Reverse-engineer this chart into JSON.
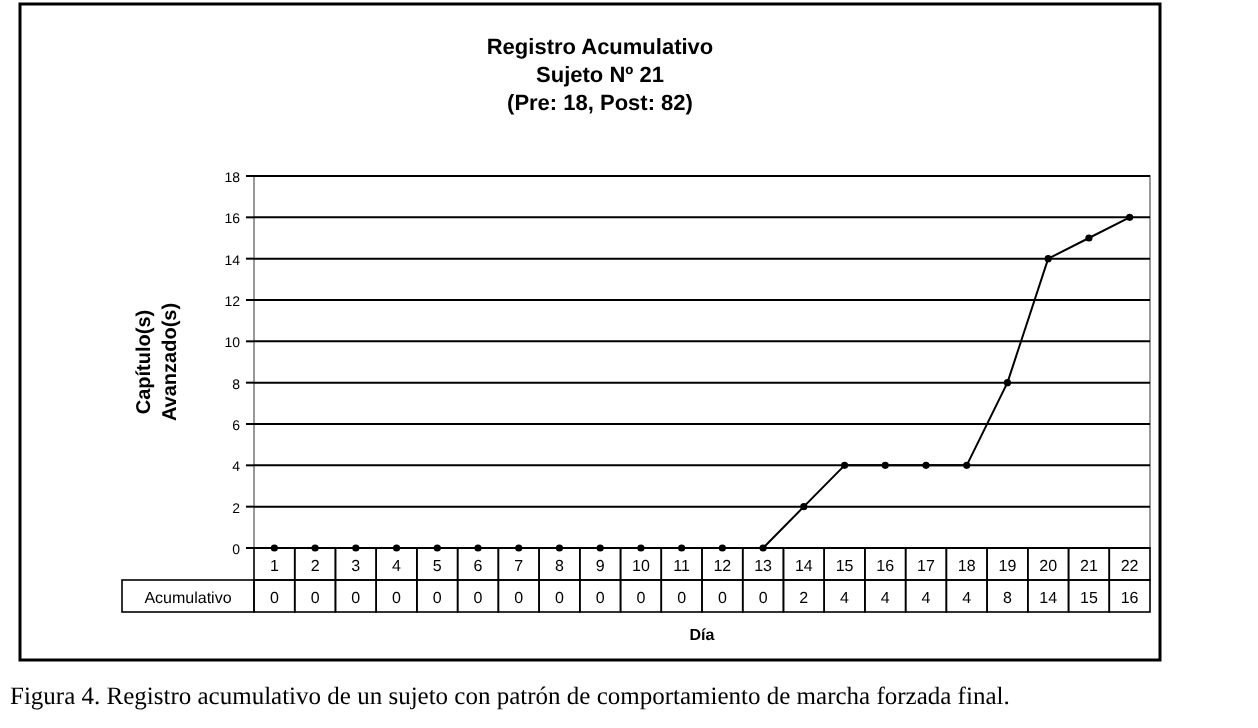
{
  "chart_data": {
    "type": "line",
    "title": "Registro Acumulativo",
    "subtitle": "Sujeto Nº 21\n(Pre: 18, Post: 82)",
    "xlabel": "Día",
    "ylabel": "Capítulo(s)\nAvanzado(s)",
    "categories": [
      "1",
      "2",
      "3",
      "4",
      "5",
      "6",
      "7",
      "8",
      "9",
      "10",
      "11",
      "12",
      "13",
      "14",
      "15",
      "16",
      "17",
      "18",
      "19",
      "20",
      "21",
      "22"
    ],
    "series": [
      {
        "name": "Acumulativo",
        "color": "#000000",
        "values": [
          0,
          0,
          0,
          0,
          0,
          0,
          0,
          0,
          0,
          0,
          0,
          0,
          0,
          2,
          4,
          4,
          4,
          4,
          8,
          14,
          15,
          16
        ]
      }
    ],
    "ylim": [
      0,
      18
    ],
    "yticks": [
      0,
      2,
      4,
      6,
      8,
      10,
      12,
      14,
      16,
      18
    ],
    "grid": "y",
    "marker": "circle",
    "line_style": "solid",
    "data_labels": true,
    "legend": "bottom",
    "annotations": [
      "Figura 4. Registro acumulativo de un sujeto con patrón de comportamiento de marcha forzada final."
    ]
  }
}
